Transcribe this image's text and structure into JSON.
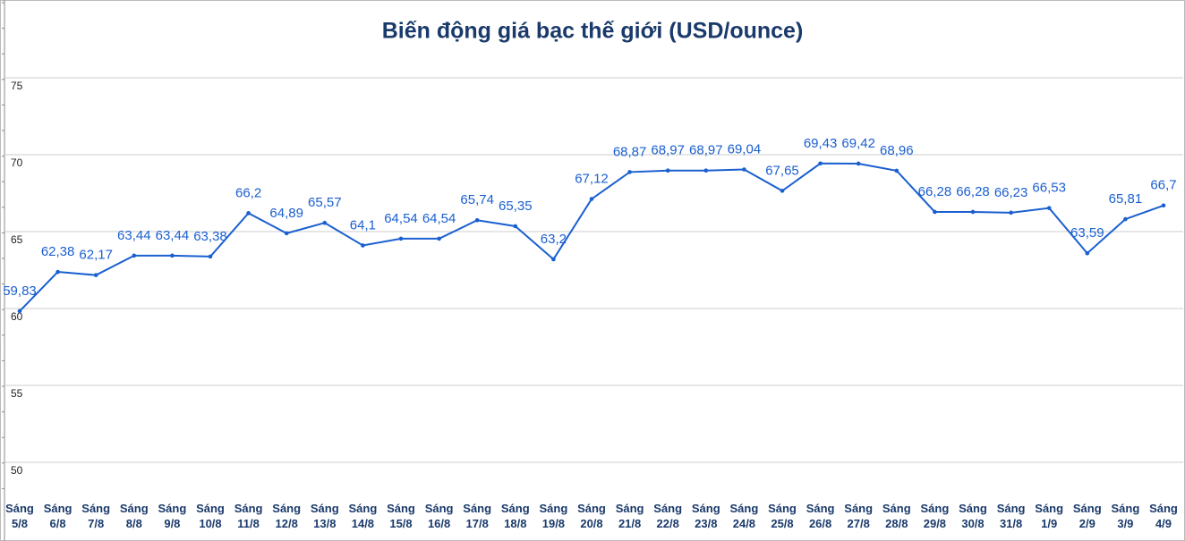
{
  "chart_data": {
    "type": "line",
    "title": "Biến động giá bạc thế giới (USD/ounce)",
    "categories": [
      "Sáng\n5/8",
      "Sáng\n6/8",
      "Sáng\n7/8",
      "Sáng\n8/8",
      "Sáng\n9/8",
      "Sáng\n10/8",
      "Sáng\n11/8",
      "Sáng\n12/8",
      "Sáng\n13/8",
      "Sáng\n14/8",
      "Sáng\n15/8",
      "Sáng\n16/8",
      "Sáng\n17/8",
      "Sáng\n18/8",
      "Sáng\n19/8",
      "Sáng\n20/8",
      "Sáng\n21/8",
      "Sáng\n22/8",
      "Sáng\n23/8",
      "Sáng\n24/8",
      "Sáng\n25/8",
      "Sáng\n26/8",
      "Sáng\n27/8",
      "Sáng\n28/8",
      "Sáng\n29/8",
      "Sáng\n30/8",
      "Sáng\n31/8",
      "Sáng\n1/9",
      "Sáng\n2/9",
      "Sáng\n3/9",
      "Sáng\n4/9"
    ],
    "values": [
      59.83,
      62.38,
      62.17,
      63.44,
      63.44,
      63.38,
      66.2,
      64.89,
      65.57,
      64.1,
      64.54,
      64.54,
      65.74,
      65.35,
      63.2,
      67.12,
      68.87,
      68.97,
      68.97,
      69.04,
      67.65,
      69.43,
      69.42,
      68.96,
      66.28,
      66.28,
      66.23,
      66.53,
      63.59,
      65.81,
      66.7
    ],
    "value_labels": [
      "59,83",
      "62,38",
      "62,17",
      "63,44",
      "63,44",
      "63,38",
      "66,2",
      "64,89",
      "65,57",
      "64,1",
      "64,54",
      "64,54",
      "65,74",
      "65,35",
      "63,2",
      "67,12",
      "68,87",
      "68,97",
      "68,97",
      "69,04",
      "67,65",
      "69,43",
      "69,42",
      "68,96",
      "66,28",
      "66,28",
      "66,23",
      "66,53",
      "63,59",
      "65,81",
      "66,7"
    ],
    "color": "#1a5fd0",
    "ylim": [
      50,
      75
    ],
    "yticks": [
      50,
      55,
      60,
      65,
      70,
      75
    ],
    "grid": true
  }
}
